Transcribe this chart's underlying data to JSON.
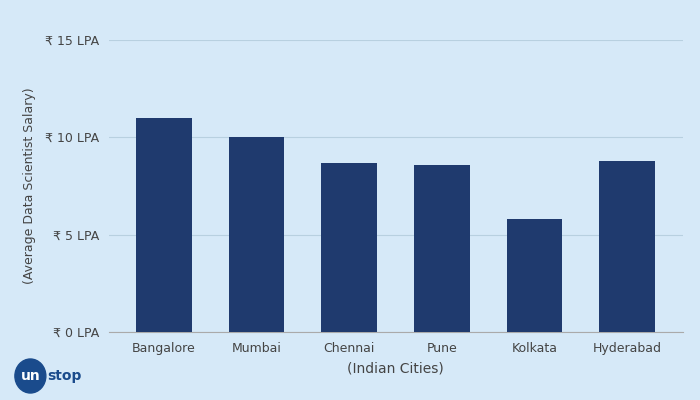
{
  "cities": [
    "Bangalore",
    "Mumbai",
    "Chennai",
    "Pune",
    "Kolkata",
    "Hyderabad"
  ],
  "salaries": [
    11.0,
    10.0,
    8.7,
    8.6,
    5.8,
    8.8
  ],
  "bar_color": "#1f3a6e",
  "background_color": "#d6e9f8",
  "ylabel": "(Average Data Scientist Salary)",
  "xlabel": "(Indian Cities)",
  "ytick_labels": [
    "₹ 0 LPA",
    "₹ 5 LPA",
    "₹ 10 LPA",
    "₹ 15 LPA"
  ],
  "ytick_values": [
    0,
    5,
    10,
    15
  ],
  "ylim": [
    0,
    15
  ],
  "grid_color": "#b8d0e0",
  "logo_bg": "#1a4b8c",
  "logo_text_color": "#ffffff",
  "logo_text2_color": "#1a4b8c"
}
